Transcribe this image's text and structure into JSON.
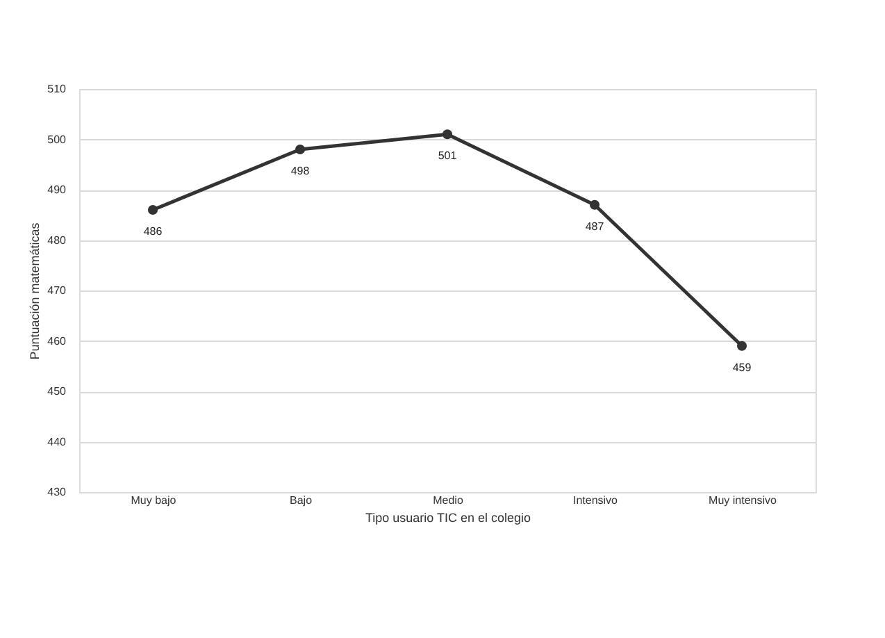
{
  "chart_data": {
    "type": "line",
    "xlabel": "Tipo usuario TIC en el colegio",
    "ylabel": "Puntuación matemáticas",
    "categories": [
      "Muy bajo",
      "Bajo",
      "Medio",
      "Intensivo",
      "Muy intensivo"
    ],
    "series": [
      {
        "color": "#333333",
        "values": [
          486,
          498,
          501,
          487,
          459
        ]
      }
    ],
    "ylim": [
      430,
      510
    ],
    "yticks": [
      430,
      440,
      450,
      460,
      470,
      480,
      490,
      500,
      510
    ],
    "grid": "y",
    "marker": "circle",
    "line_style": "solid",
    "data_labels": true,
    "legend": false
  }
}
